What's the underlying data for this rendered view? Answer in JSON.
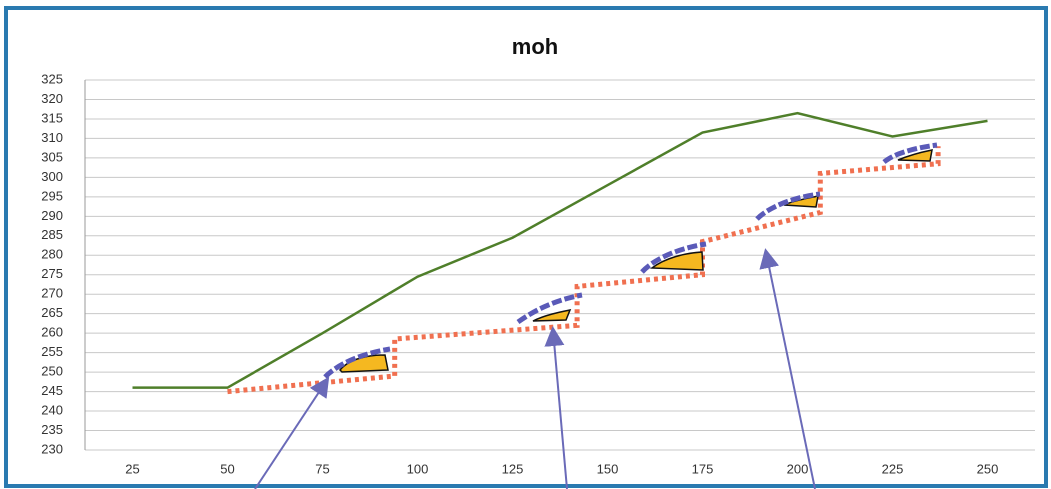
{
  "chart_data": {
    "type": "line",
    "title": "moh",
    "x": [
      25,
      50,
      75,
      100,
      125,
      150,
      175,
      200,
      225,
      250
    ],
    "xlim": [
      12.5,
      262.5
    ],
    "xticks": [
      25,
      50,
      75,
      100,
      125,
      150,
      175,
      200,
      225,
      250
    ],
    "ylim": [
      230,
      325
    ],
    "yticks": [
      230,
      235,
      240,
      245,
      250,
      255,
      260,
      265,
      270,
      275,
      280,
      285,
      290,
      295,
      300,
      305,
      310,
      315,
      320,
      325
    ],
    "grid": true,
    "series": [
      {
        "color": "#4f7f2a",
        "x": [
          25,
          50,
          75,
          100,
          125,
          150,
          175,
          200,
          225,
          250
        ],
        "values": [
          246,
          246,
          260,
          274.5,
          284.5,
          298,
          311.5,
          316.5,
          310.5,
          314.5
        ]
      },
      {
        "color": "#f07050",
        "style": "dotted",
        "x": [
          50,
          94,
          94,
          142,
          142,
          175,
          175,
          206,
          206,
          237,
          237
        ],
        "values": [
          245,
          249,
          258.5,
          262,
          272,
          275,
          283.5,
          291,
          301,
          303.5,
          308
        ]
      }
    ]
  }
}
